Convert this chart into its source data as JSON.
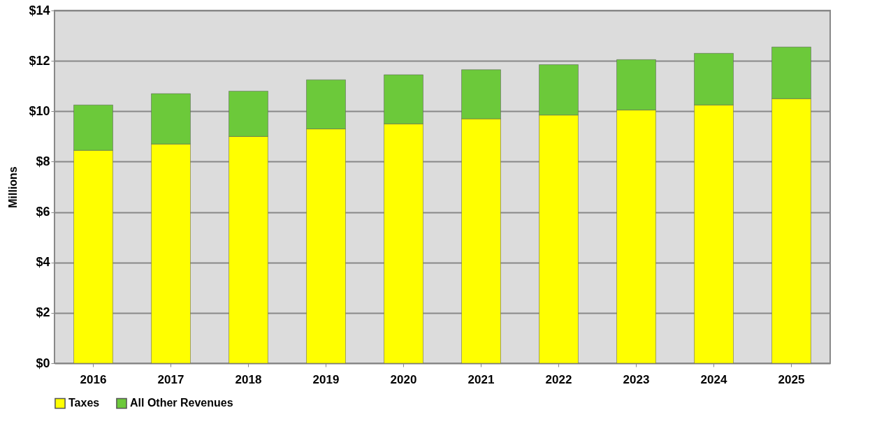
{
  "chart_data": {
    "type": "bar",
    "stacked": true,
    "ylabel": "Millions",
    "categories": [
      "2016",
      "2017",
      "2018",
      "2019",
      "2020",
      "2021",
      "2022",
      "2023",
      "2024",
      "2025"
    ],
    "series": [
      {
        "name": "Taxes",
        "color": "#ffff00",
        "values": [
          8.45,
          8.7,
          9.0,
          9.3,
          9.5,
          9.7,
          9.85,
          10.05,
          10.25,
          10.5
        ]
      },
      {
        "name": "All Other Revenues",
        "color": "#6cc93a",
        "values": [
          1.8,
          2.0,
          1.8,
          1.95,
          1.95,
          1.95,
          2.0,
          2.0,
          2.05,
          2.05
        ]
      }
    ],
    "ylim": [
      0,
      14
    ],
    "yticks": [
      {
        "value": 0,
        "label": "$0"
      },
      {
        "value": 2,
        "label": "$2"
      },
      {
        "value": 4,
        "label": "$4"
      },
      {
        "value": 6,
        "label": "$6"
      },
      {
        "value": 8,
        "label": "$8"
      },
      {
        "value": 10,
        "label": "$10"
      },
      {
        "value": 12,
        "label": "$12"
      },
      {
        "value": 14,
        "label": "$14"
      }
    ],
    "grid": "y",
    "legend": "bottom"
  }
}
